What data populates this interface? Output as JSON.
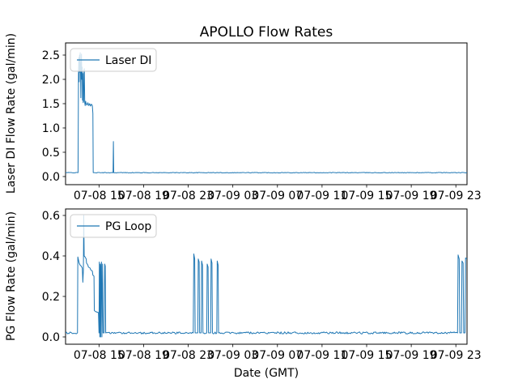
{
  "figure": {
    "title": "APOLLO Flow Rates",
    "xlabel": "Date (GMT)",
    "background": "#ffffff",
    "line_color": "#1f77b4"
  },
  "chart_data": [
    {
      "type": "line",
      "name": "laser-di-subplot",
      "ylabel": "Laser DI Flow Rate (gal/min)",
      "legend_label": "Laser DI",
      "legend_location": "upper left",
      "line_color": "#1f77b4",
      "grid": false,
      "x_unit": "hours since 07-08 12:00 GMT",
      "xlim": [
        0,
        36
      ],
      "ylim": [
        -0.167,
        2.75
      ],
      "yticks": [
        0,
        0.5,
        1.0,
        1.5,
        2.0,
        2.5
      ],
      "ytick_labels": [
        "0.0",
        "0.5",
        "1.0",
        "1.5",
        "2.0",
        "2.5"
      ],
      "xticks": [
        3,
        7,
        11,
        15,
        19,
        23,
        27,
        31,
        35
      ],
      "xtick_labels": [
        "07-08 15",
        "07-08 19",
        "07-08 23",
        "07-09 03",
        "07-09 07",
        "07-09 11",
        "07-09 15",
        "07-09 19",
        "07-09 23"
      ],
      "baseline_value": 0.08,
      "noise_amplitude": 0.006,
      "points": [
        [
          0,
          0.08
        ],
        [
          1.12,
          0.08
        ],
        [
          1.16,
          2.1
        ],
        [
          1.19,
          2.45
        ],
        [
          1.22,
          1.95
        ],
        [
          1.25,
          2.5
        ],
        [
          1.28,
          2.15
        ],
        [
          1.31,
          2.55
        ],
        [
          1.34,
          2.2
        ],
        [
          1.37,
          1.62
        ],
        [
          1.4,
          2.3
        ],
        [
          1.43,
          2.52
        ],
        [
          1.46,
          2.0
        ],
        [
          1.49,
          2.25
        ],
        [
          1.52,
          1.57
        ],
        [
          1.55,
          2.12
        ],
        [
          1.58,
          1.52
        ],
        [
          1.62,
          1.55
        ],
        [
          1.65,
          2.18
        ],
        [
          1.68,
          2.22
        ],
        [
          1.72,
          1.52
        ],
        [
          1.76,
          1.46
        ],
        [
          1.8,
          1.55
        ],
        [
          1.85,
          1.5
        ],
        [
          1.92,
          1.47
        ],
        [
          2.0,
          1.52
        ],
        [
          2.08,
          1.46
        ],
        [
          2.16,
          1.5
        ],
        [
          2.24,
          1.45
        ],
        [
          2.32,
          1.49
        ],
        [
          2.4,
          1.46
        ],
        [
          2.45,
          1.3
        ],
        [
          2.48,
          0.08
        ],
        [
          4.26,
          0.08
        ],
        [
          4.29,
          0.72
        ],
        [
          4.32,
          0.08
        ],
        [
          36,
          0.08
        ]
      ]
    },
    {
      "type": "line",
      "name": "pg-loop-subplot",
      "ylabel": "PG Flow Rate (gal/min)",
      "legend_label": "PG Loop",
      "legend_location": "upper left",
      "line_color": "#1f77b4",
      "grid": false,
      "x_unit": "hours since 07-08 12:00 GMT",
      "xlim": [
        0,
        36
      ],
      "ylim": [
        -0.036,
        0.632
      ],
      "yticks": [
        0,
        0.2,
        0.4,
        0.6
      ],
      "ytick_labels": [
        "0.0",
        "0.2",
        "0.4",
        "0.6"
      ],
      "xticks": [
        3,
        7,
        11,
        15,
        19,
        23,
        27,
        31,
        35
      ],
      "xtick_labels": [
        "07-08 15",
        "07-08 19",
        "07-08 23",
        "07-09 03",
        "07-09 07",
        "07-09 11",
        "07-09 15",
        "07-09 19",
        "07-09 23"
      ],
      "baseline_value": 0.02,
      "noise_amplitude": 0.005,
      "points": [
        [
          0,
          0.02
        ],
        [
          1.07,
          0.02
        ],
        [
          1.1,
          0.395
        ],
        [
          1.16,
          0.38
        ],
        [
          1.22,
          0.365
        ],
        [
          1.3,
          0.355
        ],
        [
          1.4,
          0.35
        ],
        [
          1.5,
          0.34
        ],
        [
          1.55,
          0.27
        ],
        [
          1.6,
          0.33
        ],
        [
          1.63,
          0.6
        ],
        [
          1.67,
          0.4
        ],
        [
          1.75,
          0.395
        ],
        [
          1.85,
          0.385
        ],
        [
          1.88,
          0.365
        ],
        [
          2.0,
          0.355
        ],
        [
          2.05,
          0.345
        ],
        [
          2.2,
          0.34
        ],
        [
          2.25,
          0.332
        ],
        [
          2.4,
          0.325
        ],
        [
          2.45,
          0.305
        ],
        [
          2.55,
          0.3
        ],
        [
          2.58,
          0.13
        ],
        [
          2.7,
          0.125
        ],
        [
          2.95,
          0.12
        ],
        [
          3.0,
          0.02
        ],
        [
          3.03,
          0.37
        ],
        [
          3.07,
          0.0
        ],
        [
          3.11,
          0.36
        ],
        [
          3.15,
          0.0
        ],
        [
          3.18,
          0.35
        ],
        [
          3.22,
          0.37
        ],
        [
          3.26,
          0.0
        ],
        [
          3.32,
          0.36
        ],
        [
          3.36,
          0.02
        ],
        [
          3.46,
          0.02
        ],
        [
          3.51,
          0.36
        ],
        [
          3.56,
          0.35
        ],
        [
          3.6,
          0.02
        ],
        [
          11.45,
          0.02
        ],
        [
          11.5,
          0.41
        ],
        [
          11.58,
          0.385
        ],
        [
          11.62,
          0.02
        ],
        [
          11.86,
          0.02
        ],
        [
          11.9,
          0.385
        ],
        [
          11.98,
          0.37
        ],
        [
          12.02,
          0.02
        ],
        [
          12.16,
          0.02
        ],
        [
          12.2,
          0.375
        ],
        [
          12.28,
          0.355
        ],
        [
          12.32,
          0.02
        ],
        [
          12.66,
          0.02
        ],
        [
          12.7,
          0.36
        ],
        [
          12.78,
          0.345
        ],
        [
          12.82,
          0.02
        ],
        [
          13.01,
          0.02
        ],
        [
          13.05,
          0.385
        ],
        [
          13.13,
          0.365
        ],
        [
          13.17,
          0.02
        ],
        [
          13.56,
          0.02
        ],
        [
          13.6,
          0.375
        ],
        [
          13.68,
          0.355
        ],
        [
          13.72,
          0.02
        ],
        [
          35.15,
          0.02
        ],
        [
          35.2,
          0.405
        ],
        [
          35.3,
          0.385
        ],
        [
          35.35,
          0.02
        ],
        [
          35.5,
          0.02
        ],
        [
          35.55,
          0.375
        ],
        [
          35.65,
          0.365
        ],
        [
          35.7,
          0.02
        ],
        [
          35.82,
          0.02
        ],
        [
          35.87,
          0.39
        ],
        [
          36,
          0.385
        ]
      ]
    }
  ]
}
